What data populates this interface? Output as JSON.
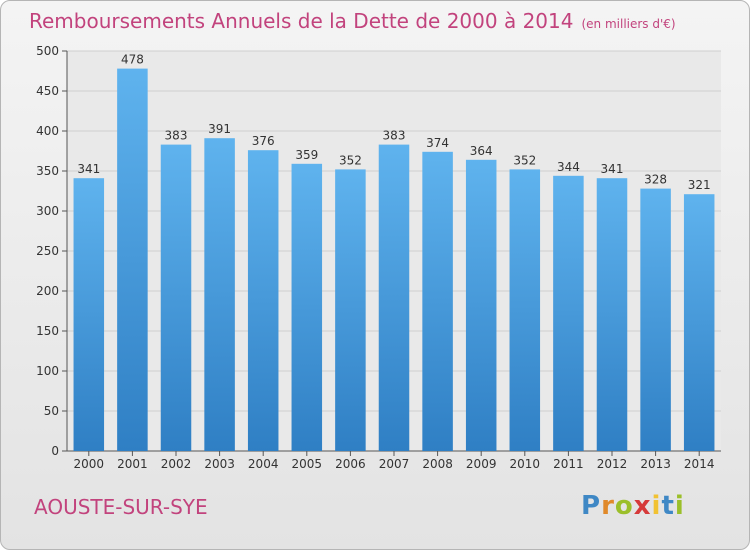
{
  "chart_data": {
    "type": "bar",
    "title": "Remboursements Annuels de la Dette de 2000 à 2014",
    "unit_note": "(en milliers d'€)",
    "categories": [
      "2000",
      "2001",
      "2002",
      "2003",
      "2004",
      "2005",
      "2006",
      "2007",
      "2008",
      "2009",
      "2010",
      "2011",
      "2012",
      "2013",
      "2014"
    ],
    "values": [
      341,
      478,
      383,
      391,
      376,
      359,
      352,
      383,
      374,
      364,
      352,
      344,
      341,
      328,
      321
    ],
    "ylim": [
      0,
      500
    ],
    "yticks": [
      0,
      50,
      100,
      150,
      200,
      250,
      300,
      350,
      400,
      450,
      500
    ],
    "grid": true,
    "bar_color": "#4a9fe0"
  },
  "location": "AOUSTE-SUR-SYE",
  "logo": {
    "letters": [
      "P",
      "r",
      "o",
      "x",
      "i",
      "t",
      "i"
    ],
    "colors": [
      "#3f88c5",
      "#e0892a",
      "#9bbf2a",
      "#d63a3a",
      "#f1c232",
      "#3f88c5",
      "#9bbf2a"
    ]
  }
}
